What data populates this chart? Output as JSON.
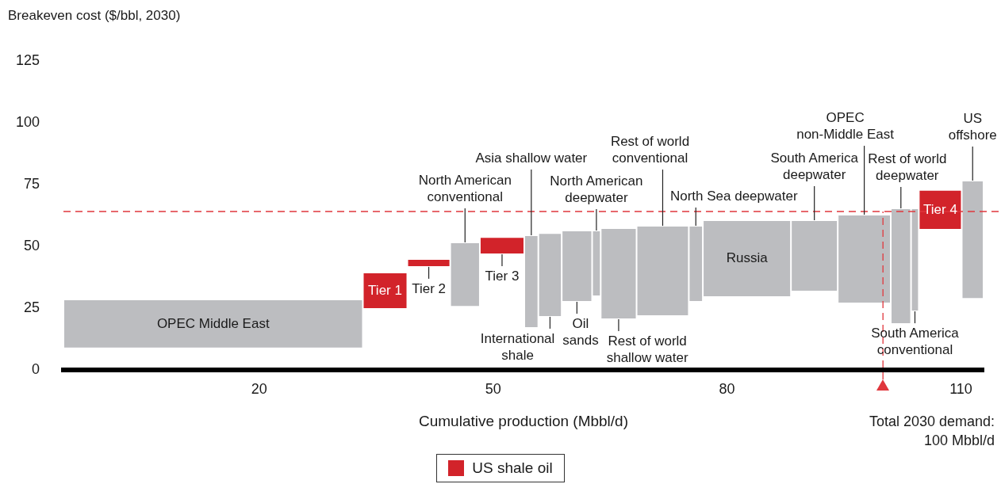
{
  "chart_data": {
    "type": "bar",
    "ylabel": "Breakeven cost ($/bbl, 2030)",
    "xlabel": "Cumulative production (Mbbl/d)",
    "x": [
      14.1,
      36.15,
      41.75,
      46.4,
      51.15,
      54.9,
      57.3,
      60.75,
      63.25,
      66.1,
      71.75,
      76.0,
      82.55,
      91.2,
      97.6,
      102.3,
      104.1,
      107.35,
      111.5
    ],
    "series": [
      {
        "name": "US shale oil",
        "color": "#d2232a",
        "base": [
          null,
          24.7,
          41.7,
          null,
          46.8,
          null,
          null,
          null,
          null,
          null,
          null,
          null,
          null,
          null,
          null,
          null,
          null,
          56.7,
          null
        ],
        "values": [
          null,
          14.7,
          3.2,
          null,
          7.0,
          null,
          null,
          null,
          null,
          null,
          null,
          null,
          null,
          null,
          null,
          null,
          null,
          16.1,
          null
        ]
      },
      {
        "color": "#bcbdc0",
        "base": [
          8.7,
          null,
          null,
          25.6,
          null,
          17.0,
          21.5,
          27.6,
          29.8,
          20.5,
          21.8,
          27.6,
          29.5,
          31.7,
          26.9,
          18.6,
          23.7,
          null,
          28.8
        ],
        "values": [
          19.8,
          null,
          null,
          26.0,
          null,
          37.5,
          33.9,
          28.8,
          26.6,
          36.9,
          36.5,
          30.7,
          31.1,
          28.9,
          35.9,
          46.8,
          41.7,
          null,
          47.8
        ]
      }
    ],
    "xlim": [
      -5.1,
      112.9
    ],
    "xticks": [
      20,
      50,
      80,
      110
    ],
    "ylim": [
      0,
      125
    ],
    "yticks": [
      0,
      25,
      50,
      75,
      100,
      125
    ],
    "grid": false,
    "legend": "bottom",
    "ref_lines": [
      {
        "axis": "y",
        "value": 64.1,
        "color": "#e0373d",
        "line_style": "dashed"
      },
      {
        "axis": "x",
        "value": 100,
        "label": "Total 2030 demand:\n100 Mbbl/d",
        "color": "#e0373d",
        "line_style": "dashed"
      }
    ],
    "annotations": [
      {
        "text": "OPEC Middle East",
        "x": 14.1,
        "y": 28.5
      },
      {
        "text": "Tier 1",
        "x": 36.15,
        "y": 39.4
      },
      {
        "text": "Tier 2",
        "x": 41.75,
        "y": 41.7
      },
      {
        "text": "North American\nconventional",
        "x": 46.4,
        "y": 51.6
      },
      {
        "text": "Tier 3",
        "x": 51.15,
        "y": 46.8
      },
      {
        "text": "Asia shallow water",
        "x": 54.9,
        "y": 54.5
      },
      {
        "text": "International\nshale",
        "x": 57.3,
        "y": 21.5
      },
      {
        "text": "Oil\nsands",
        "x": 60.75,
        "y": 27.6
      },
      {
        "text": "North American\ndeepwater",
        "x": 63.25,
        "y": 56.4
      },
      {
        "text": "Rest of world\nshallow water",
        "x": 66.1,
        "y": 20.5
      },
      {
        "text": "Rest of world\nconventional",
        "x": 71.75,
        "y": 58.3
      },
      {
        "text": "North Sea deepwater",
        "x": 76.0,
        "y": 58.3
      },
      {
        "text": "Russia",
        "x": 82.55,
        "y": 60.6
      },
      {
        "text": "South America\ndeepwater",
        "x": 91.2,
        "y": 60.6
      },
      {
        "text": "OPEC\nnon-Middle East",
        "x": 97.6,
        "y": 62.8
      },
      {
        "text": "Rest of world\ndeepwater",
        "x": 102.3,
        "y": 65.4
      },
      {
        "text": "South America\nconventional",
        "x": 104.1,
        "y": 23.7
      },
      {
        "text": "Tier 4",
        "x": 107.35,
        "y": 72.8
      },
      {
        "text": "US\noffshore",
        "x": 111.5,
        "y": 76.6
      }
    ]
  }
}
